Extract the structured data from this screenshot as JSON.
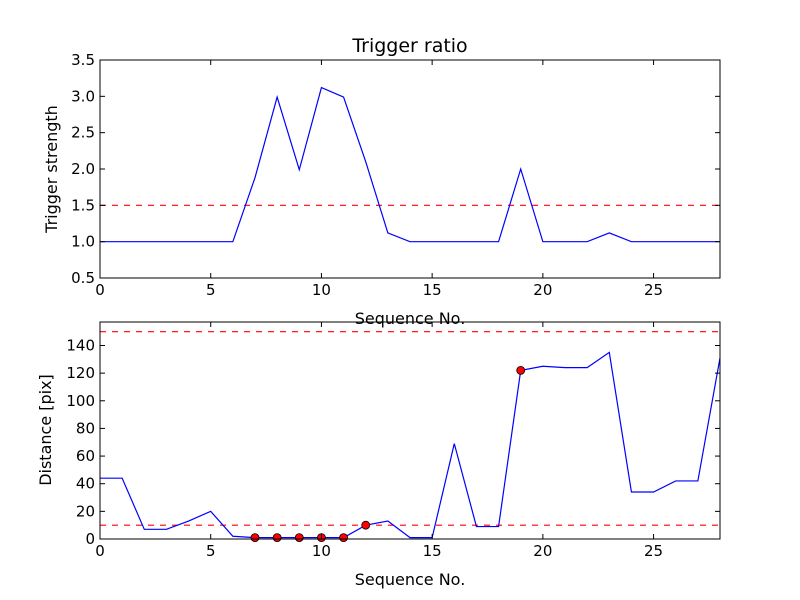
{
  "chart_data": [
    {
      "type": "line",
      "title": "Trigger ratio",
      "xlabel": "Sequence No.",
      "ylabel": "Trigger strength",
      "xlim": [
        0,
        28
      ],
      "ylim": [
        0.5,
        3.5
      ],
      "xticks": [
        0,
        5,
        10,
        15,
        20,
        25
      ],
      "yticks": [
        0.5,
        1.0,
        1.5,
        2.0,
        2.5,
        3.0,
        3.5
      ],
      "ytick_labels": [
        "0.5",
        "1.0",
        "1.5",
        "2.0",
        "2.5",
        "3.0",
        "3.5"
      ],
      "threshold_lines": [
        1.5
      ],
      "line_color": "#0000ff",
      "threshold_color": "#ff0000",
      "series": [
        {
          "x": [
            0,
            1,
            2,
            3,
            4,
            5,
            6,
            7,
            8,
            9,
            10,
            11,
            12,
            13,
            14,
            15,
            16,
            17,
            18,
            19,
            20,
            21,
            22,
            23,
            24,
            25,
            26,
            27,
            28
          ],
          "values": [
            1.0,
            1.0,
            1.0,
            1.0,
            1.0,
            1.0,
            1.0,
            1.88,
            2.99,
            1.99,
            3.12,
            2.99,
            2.1,
            1.12,
            1.0,
            1.0,
            1.0,
            1.0,
            1.0,
            2.0,
            1.0,
            1.0,
            1.0,
            1.12,
            1.0,
            1.0,
            1.0,
            1.0,
            1.0
          ]
        }
      ]
    },
    {
      "type": "line",
      "title": "",
      "xlabel": "Sequence No.",
      "ylabel": "Distance [pix]",
      "xlim": [
        0,
        28
      ],
      "ylim": [
        0,
        157
      ],
      "xticks": [
        0,
        5,
        10,
        15,
        20,
        25
      ],
      "yticks": [
        0,
        20,
        40,
        60,
        80,
        100,
        120,
        140
      ],
      "ytick_labels": [
        "0",
        "20",
        "40",
        "60",
        "80",
        "100",
        "120",
        "140"
      ],
      "threshold_lines": [
        10,
        150
      ],
      "line_color": "#0000ff",
      "threshold_color": "#ff0000",
      "marker_color": "#ff0000",
      "series": [
        {
          "x": [
            0,
            1,
            2,
            3,
            4,
            5,
            6,
            7,
            8,
            9,
            10,
            11,
            12,
            13,
            14,
            15,
            16,
            17,
            18,
            19,
            20,
            21,
            22,
            23,
            24,
            25,
            26,
            27,
            28
          ],
          "values": [
            44,
            44,
            7,
            7,
            13,
            20,
            2,
            1,
            1,
            1,
            1,
            1,
            10,
            13,
            1,
            1,
            69,
            9,
            9,
            122,
            125,
            124,
            124,
            135,
            34,
            34,
            42,
            42,
            131
          ]
        }
      ],
      "markers": {
        "x": [
          7,
          8,
          9,
          10,
          11,
          12,
          19
        ],
        "values": [
          1,
          1,
          1,
          1,
          1,
          10,
          122
        ]
      }
    }
  ]
}
